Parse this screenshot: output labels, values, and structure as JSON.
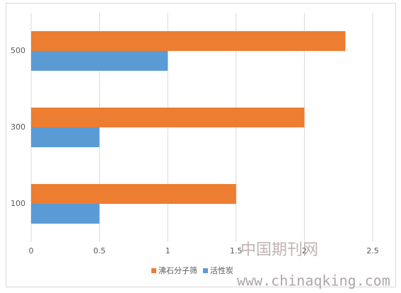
{
  "chart_data": {
    "type": "barh",
    "categories": [
      "100",
      "300",
      "500"
    ],
    "series": [
      {
        "name": "沸石分子筛",
        "color": "#ED7D31",
        "values": [
          1.5,
          2,
          2.3
        ]
      },
      {
        "name": "活性炭",
        "color": "#5B9BD5",
        "values": [
          0.5,
          0.5,
          1
        ]
      }
    ],
    "xlim": [
      0,
      2.5
    ],
    "xticks": [
      0,
      0.5,
      1,
      1.5,
      2,
      2.5
    ],
    "grid": true,
    "legend": "bottom"
  },
  "watermark": {
    "text": "中国期刊网",
    "url": "www.chinaqking.com"
  }
}
